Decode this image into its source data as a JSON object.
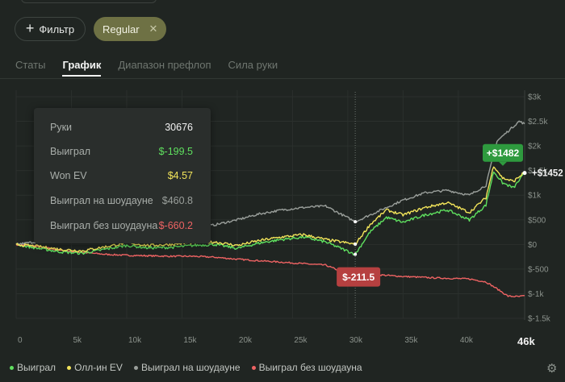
{
  "filters": {
    "add_filter_label": "Фильтр",
    "active_chip": "Regular"
  },
  "tabs": [
    {
      "label": "Статы",
      "active": false
    },
    {
      "label": "График",
      "active": true
    },
    {
      "label": "Диапазон префлоп",
      "active": false
    },
    {
      "label": "Сила руки",
      "active": false
    }
  ],
  "tooltip": {
    "rows": [
      {
        "label": "Руки",
        "value": "30676",
        "color": "#f2f2f2"
      },
      {
        "label": "Выиграл",
        "value": "$-199.5",
        "color": "#5fe05f"
      },
      {
        "label": "Won EV",
        "value": "$4.57",
        "color": "#f2e45a"
      },
      {
        "label": "Выиграл на шоудауне",
        "value": "$460.8",
        "color": "#9a9f9b"
      },
      {
        "label": "Выиграл без шоудауна",
        "value": "$-660.2",
        "color": "#ee6363"
      }
    ]
  },
  "badges": {
    "green_peak": "+$1482",
    "line_end": "+$1452",
    "red_hover": "$-211.5"
  },
  "chart_data": {
    "type": "line",
    "xlabel": "",
    "ylabel": "",
    "x_max_label": "46k",
    "xlim": [
      0,
      46000
    ],
    "ylim": [
      -1500,
      3000
    ],
    "x_ticks": [
      "0",
      "5k",
      "10k",
      "15k",
      "20k",
      "25k",
      "30k",
      "35k",
      "40k"
    ],
    "x_tick_values": [
      0,
      5000,
      10000,
      15000,
      20000,
      25000,
      30000,
      35000,
      40000
    ],
    "y_ticks": [
      "$3k",
      "$2.5k",
      "$2k",
      "$1.5k",
      "$1k",
      "$500",
      "$0",
      "$-500",
      "$-1k",
      "$-1.5k"
    ],
    "y_tick_values": [
      3000,
      2500,
      2000,
      1500,
      1000,
      500,
      0,
      -500,
      -1000,
      -1500
    ],
    "hover_x": 30676,
    "series": [
      {
        "name": "Выиграл на шоудауне",
        "color": "#9a9f9b",
        "x": [
          0,
          2000,
          4000,
          6000,
          8000,
          10000,
          12000,
          14000,
          16000,
          18000,
          20000,
          22000,
          24000,
          26000,
          28000,
          30676,
          33000,
          35000,
          37000,
          39000,
          41000,
          42500,
          43500,
          44500,
          45500,
          46000
        ],
        "y": [
          0,
          60,
          80,
          120,
          150,
          180,
          220,
          260,
          330,
          400,
          500,
          620,
          700,
          750,
          780,
          461,
          700,
          900,
          1050,
          1100,
          1000,
          1200,
          2100,
          2300,
          2500,
          2450
        ]
      },
      {
        "name": "Олл-ин EV",
        "color": "#f2e45a",
        "x": [
          0,
          2000,
          4000,
          6000,
          8000,
          10000,
          12000,
          14000,
          16000,
          18000,
          20000,
          22000,
          24000,
          26000,
          28000,
          30676,
          32000,
          33500,
          35000,
          37000,
          39000,
          41000,
          42500,
          43200,
          44000,
          45000,
          46000
        ],
        "y": [
          0,
          -40,
          -100,
          -130,
          -50,
          30,
          -20,
          0,
          40,
          50,
          -20,
          80,
          150,
          200,
          100,
          4.57,
          400,
          700,
          600,
          750,
          850,
          650,
          950,
          1600,
          1350,
          1280,
          1470
        ]
      },
      {
        "name": "Выиграл",
        "color": "#5fe05f",
        "x": [
          0,
          2000,
          4000,
          6000,
          8000,
          10000,
          12000,
          14000,
          16000,
          18000,
          20000,
          22000,
          24000,
          26000,
          28000,
          30676,
          32000,
          33500,
          35000,
          37000,
          39000,
          41000,
          42500,
          43200,
          44000,
          45000,
          46000
        ],
        "y": [
          0,
          -80,
          -150,
          -180,
          -100,
          -20,
          -70,
          -60,
          -20,
          0,
          -80,
          30,
          100,
          150,
          50,
          -199.5,
          250,
          550,
          450,
          600,
          700,
          500,
          800,
          1482,
          1250,
          1150,
          1452
        ]
      },
      {
        "name": "Выиграл без шоудауна",
        "color": "#ee6363",
        "x": [
          0,
          2000,
          4000,
          6000,
          8000,
          10000,
          12000,
          14000,
          16000,
          18000,
          20000,
          22000,
          24000,
          26000,
          28000,
          30676,
          33000,
          35000,
          38000,
          41000,
          42500,
          43500,
          44500,
          45500,
          46000
        ],
        "y": [
          0,
          -40,
          -120,
          -160,
          -200,
          -220,
          -230,
          -240,
          -240,
          -260,
          -300,
          -330,
          -360,
          -390,
          -420,
          -660.2,
          -620,
          -650,
          -680,
          -700,
          -760,
          -900,
          -1050,
          -1060,
          -1040
        ]
      }
    ]
  }
}
